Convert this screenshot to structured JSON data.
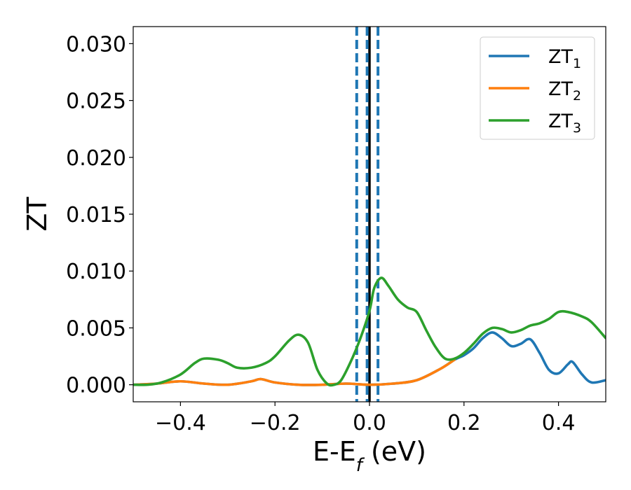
{
  "chart_data": {
    "type": "line",
    "title": "",
    "xlabel": {
      "main": "E-E",
      "sub": "f",
      "suffix": " (eV)"
    },
    "ylabel": "ZT",
    "xlim": [
      -0.5,
      0.5
    ],
    "ylim": [
      -0.0015,
      0.0315
    ],
    "xticks": [
      -0.4,
      -0.2,
      0.0,
      0.2,
      0.4
    ],
    "xtick_labels": [
      "−0.4",
      "−0.2",
      "0.0",
      "0.2",
      "0.4"
    ],
    "yticks": [
      0.0,
      0.005,
      0.01,
      0.015,
      0.02,
      0.025,
      0.03
    ],
    "ytick_labels": [
      "0.000",
      "0.005",
      "0.010",
      "0.015",
      "0.020",
      "0.025",
      "0.030"
    ],
    "grid": false,
    "legend_position": "top-right",
    "vlines": [
      {
        "x": 0.0,
        "color": "#000000",
        "style": "solid"
      },
      {
        "x": -0.027,
        "color": "#1f77b4",
        "style": "dashed"
      },
      {
        "x": -0.005,
        "color": "#1f77b4",
        "style": "dashed"
      },
      {
        "x": 0.018,
        "color": "#1f77b4",
        "style": "dashed"
      }
    ],
    "series": [
      {
        "name": "ZT",
        "sub": "1",
        "color": "#1f77b4",
        "x": [
          -0.5,
          -0.45,
          -0.4,
          -0.35,
          -0.3,
          -0.25,
          -0.23,
          -0.2,
          -0.15,
          -0.1,
          -0.05,
          0.0,
          0.05,
          0.1,
          0.15,
          0.18,
          0.2,
          0.22,
          0.24,
          0.26,
          0.28,
          0.3,
          0.32,
          0.34,
          0.36,
          0.38,
          0.4,
          0.42,
          0.43,
          0.45,
          0.47,
          0.5
        ],
        "y": [
          0.0,
          0.0001,
          0.0003,
          0.0001,
          0.0,
          0.0003,
          0.0005,
          0.0002,
          0.0,
          0.0,
          0.0001,
          0.0,
          0.0001,
          0.0004,
          0.0014,
          0.0022,
          0.0026,
          0.0032,
          0.0041,
          0.0046,
          0.0041,
          0.0034,
          0.0036,
          0.004,
          0.0028,
          0.0013,
          0.001,
          0.0018,
          0.002,
          0.0009,
          0.0002,
          0.0004
        ]
      },
      {
        "name": "ZT",
        "sub": "2",
        "color": "#ff7f0e",
        "x": [
          -0.5,
          -0.45,
          -0.4,
          -0.35,
          -0.3,
          -0.25,
          -0.23,
          -0.2,
          -0.15,
          -0.1,
          -0.05,
          0.0,
          0.05,
          0.1,
          0.15,
          0.18
        ],
        "y": [
          0.0,
          0.0001,
          0.0003,
          0.0001,
          0.0,
          0.0003,
          0.0005,
          0.0002,
          0.0,
          0.0,
          0.0001,
          0.0,
          0.0001,
          0.0004,
          0.0014,
          0.0022
        ]
      },
      {
        "name": "ZT",
        "sub": "3",
        "color": "#2ca02c",
        "x": [
          -0.5,
          -0.47,
          -0.44,
          -0.4,
          -0.37,
          -0.35,
          -0.32,
          -0.3,
          -0.28,
          -0.25,
          -0.22,
          -0.2,
          -0.17,
          -0.15,
          -0.13,
          -0.11,
          -0.09,
          -0.075,
          -0.06,
          -0.04,
          -0.02,
          0.0,
          0.01,
          0.025,
          0.04,
          0.06,
          0.08,
          0.1,
          0.12,
          0.14,
          0.16,
          0.18,
          0.2,
          0.22,
          0.24,
          0.26,
          0.28,
          0.3,
          0.32,
          0.34,
          0.36,
          0.38,
          0.4,
          0.42,
          0.45,
          0.47,
          0.5
        ],
        "y": [
          0.0,
          0.0,
          0.0002,
          0.0009,
          0.0019,
          0.0023,
          0.0022,
          0.0019,
          0.0015,
          0.0015,
          0.0019,
          0.0025,
          0.0039,
          0.0044,
          0.0037,
          0.0013,
          0.0001,
          0.0,
          0.0004,
          0.002,
          0.004,
          0.0065,
          0.0085,
          0.0094,
          0.0087,
          0.0075,
          0.0068,
          0.0064,
          0.0048,
          0.0033,
          0.0023,
          0.0023,
          0.0028,
          0.0036,
          0.0045,
          0.005,
          0.0049,
          0.0046,
          0.0048,
          0.0052,
          0.0054,
          0.0058,
          0.0064,
          0.0064,
          0.006,
          0.0055,
          0.0041
        ]
      }
    ]
  }
}
